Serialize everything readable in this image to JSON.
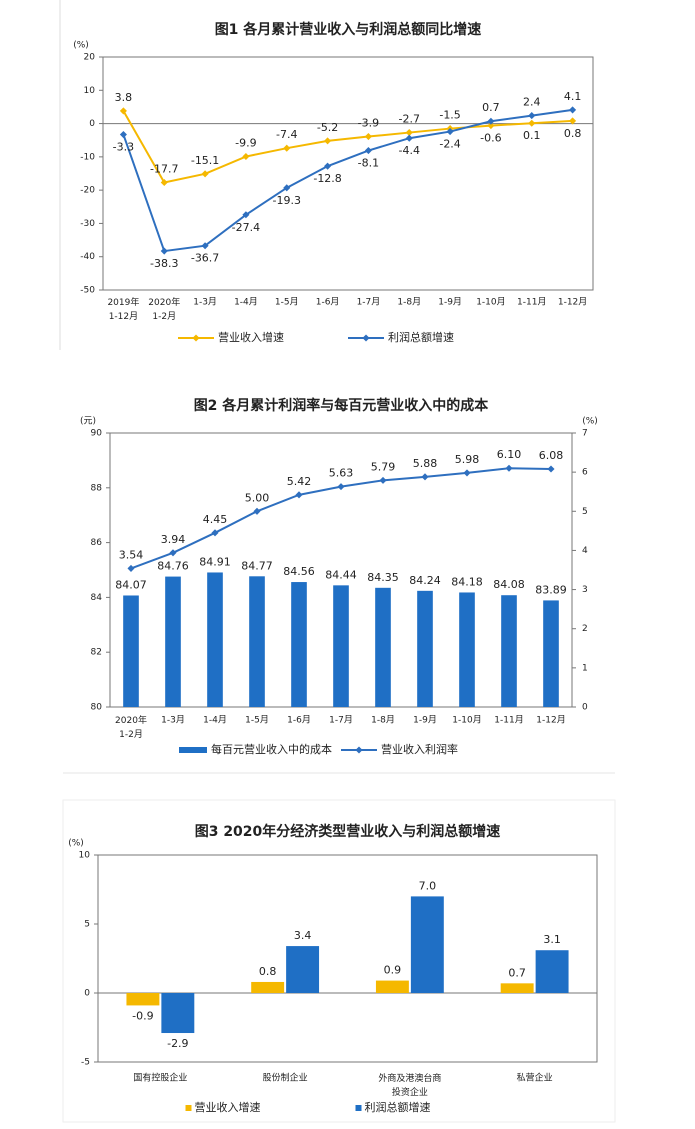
{
  "chart_data": [
    {
      "type": "line",
      "title": "图1 各月累计营业收入与利润总额同比增速",
      "y_label": "(%)",
      "categories": [
        "2019年 1-12月",
        "2020年 1-2月",
        "1-3月",
        "1-4月",
        "1-5月",
        "1-6月",
        "1-7月",
        "1-8月",
        "1-9月",
        "1-10月",
        "1-11月",
        "1-12月"
      ],
      "ylim": [
        -50,
        20
      ],
      "yticks": [
        -50,
        -40,
        -30,
        -20,
        -10,
        0,
        10,
        20
      ],
      "series": [
        {
          "name": "营业收入增速",
          "type": "line",
          "color": "#f5b800",
          "values": [
            3.8,
            -17.7,
            -15.1,
            -9.9,
            -7.4,
            -5.2,
            -3.9,
            -2.7,
            -1.5,
            -0.6,
            0.1,
            0.8
          ]
        },
        {
          "name": "利润总额增速",
          "type": "line",
          "color": "#2e6fbf",
          "values": [
            -3.3,
            -38.3,
            -36.7,
            -27.4,
            -19.3,
            -12.8,
            -8.1,
            -4.4,
            -2.4,
            0.7,
            2.4,
            4.1
          ]
        }
      ]
    },
    {
      "type": "combo",
      "title": "图2 各月累计利润率与每百元营业收入中的成本",
      "y_label": "(元)",
      "y2_label": "(%)",
      "categories": [
        "2020年 1-2月",
        "1-3月",
        "1-4月",
        "1-5月",
        "1-6月",
        "1-7月",
        "1-8月",
        "1-9月",
        "1-10月",
        "1-11月",
        "1-12月"
      ],
      "ylim": [
        80,
        90
      ],
      "yticks": [
        80,
        82,
        84,
        86,
        88,
        90
      ],
      "y2lim": [
        0,
        7
      ],
      "y2ticks": [
        0,
        1,
        2,
        3,
        4,
        5,
        6,
        7
      ],
      "series": [
        {
          "name": "每百元营业收入中的成本",
          "type": "bar",
          "color": "#1f6fc5",
          "values": [
            84.07,
            84.76,
            84.91,
            84.77,
            84.56,
            84.44,
            84.35,
            84.24,
            84.18,
            84.08,
            83.89
          ]
        },
        {
          "name": "营业收入利润率",
          "type": "line",
          "axis": "y2",
          "color": "#2e6fbf",
          "values": [
            3.54,
            3.94,
            4.45,
            5.0,
            5.42,
            5.63,
            5.79,
            5.88,
            5.98,
            6.1,
            6.08
          ],
          "value_labels": [
            "3.54",
            "3.94",
            "4.45",
            "5.00",
            "5.42",
            "5.63",
            "5.79",
            "5.88",
            "5.98",
            "6.10",
            "6.08"
          ]
        }
      ]
    },
    {
      "type": "bar",
      "title": "图3 2020年分经济类型营业收入与利润总额增速",
      "y_label": "(%)",
      "categories": [
        "国有控股企业",
        "股份制企业",
        "外商及港澳台商 投资企业",
        "私营企业"
      ],
      "ylim": [
        -5,
        10
      ],
      "yticks": [
        -5,
        0,
        5,
        10
      ],
      "series": [
        {
          "name": "营业收入增速",
          "type": "bar",
          "color": "#f5b800",
          "values": [
            -0.9,
            0.8,
            0.9,
            0.7
          ]
        },
        {
          "name": "利润总额增速",
          "type": "bar",
          "color": "#1f6fc5",
          "values": [
            -2.9,
            3.4,
            7.0,
            3.1
          ],
          "value_labels": [
            "-2.9",
            "3.4",
            "7.0",
            "3.1"
          ]
        }
      ]
    }
  ]
}
